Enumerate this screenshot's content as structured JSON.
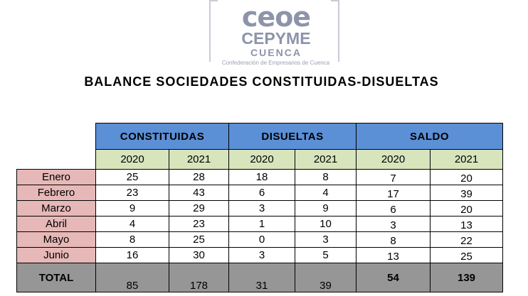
{
  "logo": {
    "line1": "ceoe",
    "line2": "CEPYME",
    "line3": "CUENCA",
    "subtitle": "Confederación de Empresarios de Cuenca"
  },
  "title": "BALANCE SOCIEDADES CONSTITUIDAS-DISUELTAS",
  "table": {
    "groups": [
      "CONSTITUIDAS",
      "DISUELTAS",
      "SALDO"
    ],
    "years": [
      "2020",
      "2021",
      "2020",
      "2021",
      "2020",
      "2021"
    ],
    "rows": [
      {
        "month": "Enero",
        "values": [
          "25",
          "28",
          "18",
          "8",
          "7",
          "20"
        ]
      },
      {
        "month": "Febrero",
        "values": [
          "23",
          "43",
          "6",
          "4",
          "17",
          "39"
        ]
      },
      {
        "month": "Marzo",
        "values": [
          "9",
          "29",
          "3",
          "9",
          "6",
          "20"
        ]
      },
      {
        "month": "Abril",
        "values": [
          "4",
          "23",
          "1",
          "10",
          "3",
          "13"
        ]
      },
      {
        "month": "Mayo",
        "values": [
          "8",
          "25",
          "0",
          "3",
          "8",
          "22"
        ]
      },
      {
        "month": "Junio",
        "values": [
          "16",
          "30",
          "3",
          "5",
          "13",
          "25"
        ]
      }
    ],
    "total": {
      "label": "TOTAL",
      "values": [
        "85",
        "178",
        "31",
        "39",
        "54",
        "139"
      ]
    }
  },
  "colors": {
    "group_header": "#5b8fd6",
    "year_row": "#d8e4bc",
    "month_cell": "#e6b8b7",
    "total_row": "#969696"
  }
}
